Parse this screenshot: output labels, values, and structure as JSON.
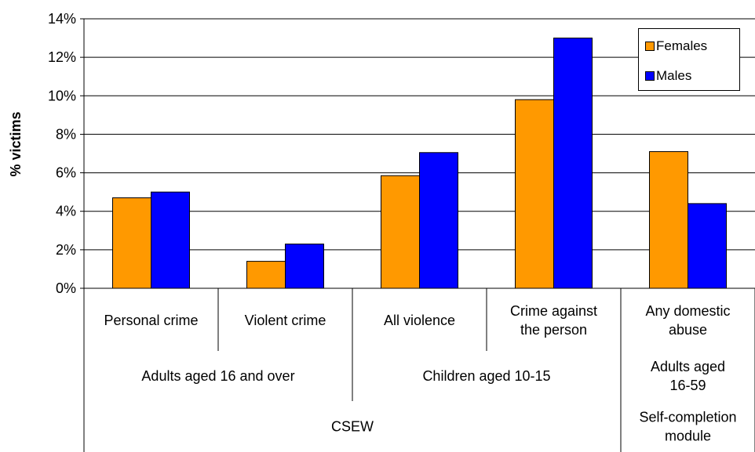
{
  "chart_data": {
    "type": "bar",
    "ylabel": "% victims",
    "ylim": [
      0,
      14
    ],
    "yticks": [
      "0%",
      "2%",
      "4%",
      "6%",
      "8%",
      "10%",
      "12%",
      "14%"
    ],
    "grid": true,
    "legend_position": "top-right",
    "categories": [
      "Personal crime",
      "Violent crime",
      "All violence",
      "Crime against the person",
      "Any domestic abuse"
    ],
    "category_lines": [
      [
        "Personal crime"
      ],
      [
        "Violent crime"
      ],
      [
        "All violence"
      ],
      [
        "Crime against",
        "the person"
      ],
      [
        "Any domestic",
        "abuse"
      ]
    ],
    "series": [
      {
        "name": "Females",
        "color": "#FF9900",
        "values": [
          4.7,
          1.4,
          5.85,
          9.8,
          7.1
        ]
      },
      {
        "name": "Males",
        "color": "#0000FF",
        "values": [
          5.0,
          2.3,
          7.05,
          13.0,
          4.4
        ]
      }
    ],
    "groups_level2": [
      {
        "lines": [
          "Adults aged 16 and over"
        ],
        "span": [
          0,
          1
        ]
      },
      {
        "lines": [
          "Children aged 10-15"
        ],
        "span": [
          2,
          3
        ]
      },
      {
        "lines": [
          "Adults aged",
          "16-59"
        ],
        "span": [
          4,
          4
        ]
      }
    ],
    "groups_level3": [
      {
        "lines": [
          "CSEW"
        ],
        "span": [
          0,
          3
        ]
      },
      {
        "lines": [
          "Self-completion",
          "module"
        ],
        "span": [
          4,
          4
        ]
      }
    ]
  }
}
